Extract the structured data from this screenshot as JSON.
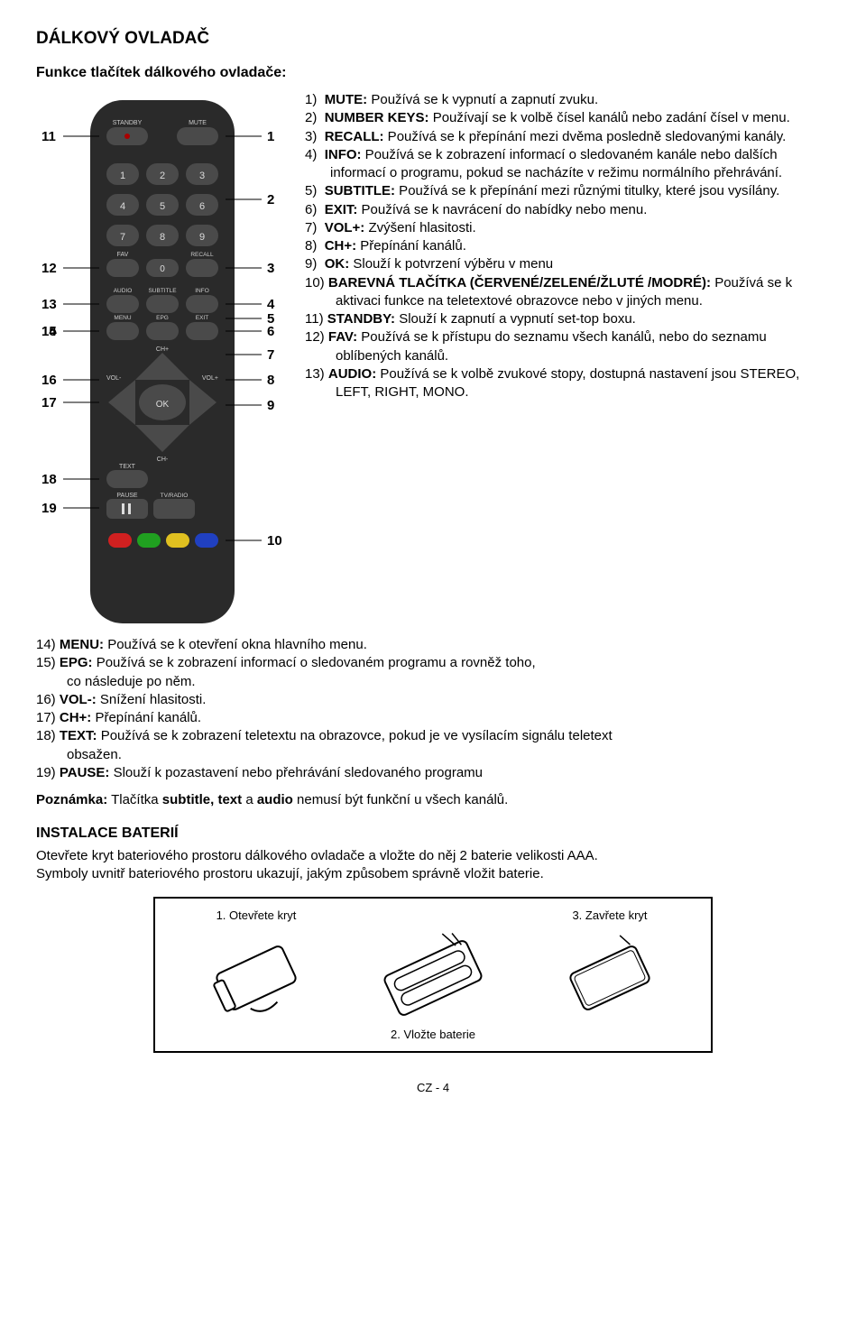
{
  "page": {
    "title": "DÁLKOVÝ OVLADAČ",
    "subtitle": "Funkce tlačítek dálkového ovladače:",
    "footer": "CZ - 4"
  },
  "remote": {
    "body_color": "#2a2a2a",
    "button_color": "#4a4a4a",
    "button_text_color": "#e0e0e0",
    "left_callouts": [
      "11",
      "12",
      "13",
      "14",
      "15",
      "16",
      "17",
      "18",
      "19"
    ],
    "right_callouts": [
      "1",
      "2",
      "3",
      "4",
      "5",
      "6",
      "7",
      "8",
      "9",
      "10"
    ],
    "top_left_btn": "STANDBY",
    "top_right_btn": "MUTE",
    "num_keys": [
      "1",
      "2",
      "3",
      "4",
      "5",
      "6",
      "7",
      "8",
      "9",
      "0"
    ],
    "fav_btn": "FAV",
    "recall_btn": "RECALL",
    "row_audio": [
      "AUDIO",
      "SUBTITLE",
      "INFO"
    ],
    "row_menu": [
      "MENU",
      "EPG",
      "EXIT"
    ],
    "ch_plus": "CH+",
    "ch_minus": "CH-",
    "vol_minus": "VOL-",
    "vol_plus": "VOL+",
    "ok": "OK",
    "text_btn": "TEXT",
    "pause_btn": "PAUSE",
    "tvradio_btn": "TV/RADIO",
    "color_btns": [
      "#d02020",
      "#20a020",
      "#e0c020",
      "#2040c0"
    ]
  },
  "desc": {
    "i1_n": "1)",
    "i1_b": "MUTE:",
    "i1_t": " Používá se k vypnutí a zapnutí zvuku.",
    "i2_n": "2)",
    "i2_b": "NUMBER KEYS:",
    "i2_t": " Používají se k volbě čísel kanálů nebo zadání čísel v menu.",
    "i3_n": "3)",
    "i3_b": "RECALL:",
    "i3_t": " Používá se k přepínání mezi dvěma posledně sledovanými kanály.",
    "i4_n": "4)",
    "i4_b": "INFO:",
    "i4_t": " Používá se k zobrazení informací o sledovaném kanále nebo dalších informací o programu, pokud se nacházíte v režimu normálního přehrávání.",
    "i5_n": "5)",
    "i5_b": "SUBTITLE:",
    "i5_t": " Používá se k přepínání mezi různými titulky, které jsou vysílány.",
    "i6_n": "6)",
    "i6_b": "EXIT:",
    "i6_t": " Používá se k navrácení do nabídky nebo menu.",
    "i7_n": "7)",
    "i7_b": "VOL+:",
    "i7_t": " Zvýšení hlasitosti.",
    "i8_n": "8)",
    "i8_b": "CH+:",
    "i8_t": " Přepínání kanálů.",
    "i9_n": "9)",
    "i9_b": "OK:",
    "i9_t": " Slouží k potvrzení výběru v menu",
    "i10_n": "10)",
    "i10_b": "BAREVNÁ TLAČÍTKA (ČERVENÉ/ZELENÉ/ŽLUTÉ /MODRÉ):",
    "i10_t": " Používá se k aktivaci funkce na teletextové obrazovce nebo v jiných menu.",
    "i11_n": "11)",
    "i11_b": "STANDBY:",
    "i11_t": " Slouží k zapnutí a vypnutí set-top boxu.",
    "i12_n": "12)",
    "i12_b": "FAV:",
    "i12_t": " Používá se k přístupu do seznamu všech kanálů, nebo do seznamu oblíbených kanálů.",
    "i13_n": "13)",
    "i13_b": "AUDIO:",
    "i13_t": " Používá se k volbě zvukové stopy, dostupná nastavení jsou STEREO, LEFT, RIGHT, MONO."
  },
  "lower": {
    "i14_n": "14)",
    "i14_b": "MENU:",
    "i14_t": " Používá se k otevření okna hlavního menu.",
    "i15_n": "15)",
    "i15_b": "EPG:",
    "i15_t": " Používá se k zobrazení informací o sledovaném programu a rovněž toho,",
    "i15_t2": "co následuje po něm.",
    "i16_n": "16)",
    "i16_b": "VOL-:",
    "i16_t": " Snížení hlasitosti.",
    "i17_n": "17)",
    "i17_b": "CH+:",
    "i17_t": " Přepínání kanálů.",
    "i18_n": "18)",
    "i18_b": "TEXT:",
    "i18_t": " Používá se k zobrazení teletextu na obrazovce, pokud je ve vysílacím signálu teletext",
    "i18_t2": "obsažen.",
    "i19_n": "19)",
    "i19_b": "PAUSE:",
    "i19_t": " Slouží k pozastavení nebo přehrávání sledovaného programu"
  },
  "note": {
    "label": "Poznámka:",
    "pre": " Tlačítka ",
    "bold": "subtitle, text",
    "mid": " a ",
    "bold2": "audio",
    "post": " nemusí být funkční u všech kanálů."
  },
  "battery": {
    "heading": "INSTALACE BATERIÍ",
    "line1": "Otevřete kryt bateriového prostoru dálkového ovladače a vložte do něj 2 baterie velikosti AAA.",
    "line2": "Symboly uvnitř bateriového prostoru ukazují, jakým způsobem správně vložit baterie.",
    "step1": "1. Otevřete kryt",
    "step2": "2. Vložte baterie",
    "step3": "3. Zavřete kryt"
  }
}
